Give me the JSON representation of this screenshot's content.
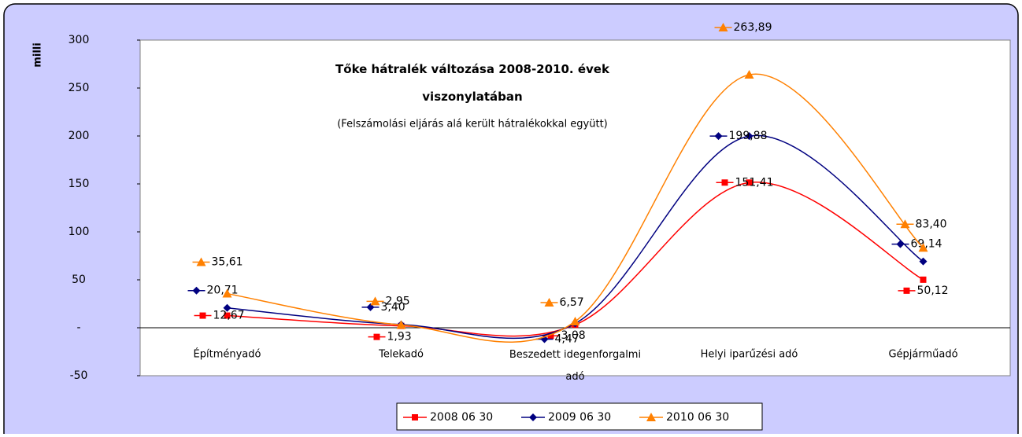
{
  "chart_data": {
    "type": "line",
    "title": "Tőke hátralék változása 2008-2010. évek viszonylatában",
    "subtitle": "(Felszámolási eljárás alá került hátralékokkal együtt)",
    "y_label": "milli",
    "categories": [
      "Építményadó",
      "Telekadó",
      "Beszedett idegenforgalmi adó",
      "Helyi iparűzési adó",
      "Gépjárműadó"
    ],
    "series": [
      {
        "name": "2008 06 30",
        "color": "#ff0000",
        "marker": "square",
        "values": [
          12.67,
          1.93,
          3.08,
          151.41,
          50.12
        ],
        "value_labels": [
          "12,67",
          "1,93",
          "3,08",
          "151,41",
          "50,12"
        ]
      },
      {
        "name": "2009 06 30",
        "color": "#000080",
        "marker": "diamond",
        "values": [
          20.71,
          3.4,
          4.47,
          199.88,
          69.14
        ],
        "value_labels": [
          "20,71",
          "3,40",
          "4,47",
          "199,88",
          "69,14"
        ]
      },
      {
        "name": "2010 06 30",
        "color": "#ff8000",
        "marker": "triangle",
        "values": [
          35.61,
          2.95,
          6.57,
          263.89,
          83.4
        ],
        "value_labels": [
          "35,61",
          "2,95",
          "6,57",
          "263,89",
          "83,40"
        ]
      }
    ],
    "ylim": [
      -50,
      300
    ],
    "yticks": [
      -50,
      {
        "value": 0,
        "label": "-"
      },
      50,
      100,
      150,
      200,
      250,
      300
    ],
    "grid": false,
    "smooth": true,
    "legend": "bottom"
  }
}
